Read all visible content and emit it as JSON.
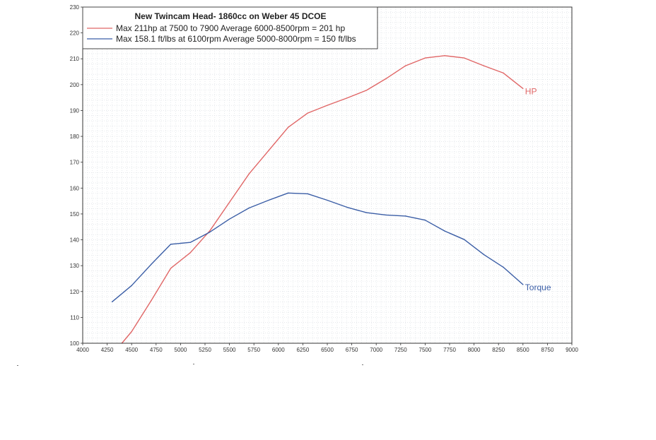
{
  "chart_data": {
    "type": "line",
    "title": "New Twincam Head- 1860cc on Weber 45 DCOE",
    "xlabel": "",
    "ylabel": "",
    "xlim": [
      4000,
      9000
    ],
    "ylim": [
      100,
      230
    ],
    "grid": true,
    "legend_position": "top-left",
    "x_ticks": [
      "4000",
      "4250",
      "4500",
      "4750",
      "5000",
      "5250",
      "5500",
      "5750",
      "6000",
      "6250",
      "6500",
      "6750",
      "7000",
      "7250",
      "7500",
      "7750",
      "8000",
      "8250",
      "8500",
      "8750",
      "9000"
    ],
    "y_ticks": [
      "100",
      "110",
      "120",
      "130",
      "140",
      "150",
      "160",
      "170",
      "180",
      "190",
      "200",
      "210",
      "220",
      "230"
    ],
    "series": [
      {
        "name": "HP",
        "legend": "Max  211hp at 7500 to 7900   Average 6000-8500rpm = 201 hp",
        "color": "#e06666",
        "x": [
          4400,
          4500,
          4700,
          4900,
          5100,
          5300,
          5500,
          5700,
          5900,
          6100,
          6300,
          6500,
          6700,
          6900,
          7100,
          7300,
          7500,
          7700,
          7900,
          8100,
          8300,
          8500
        ],
        "y": [
          100,
          104.5,
          116.5,
          129,
          135,
          143.5,
          154.5,
          165.5,
          174.5,
          183.5,
          189,
          192,
          194.8,
          197.8,
          202.3,
          207.3,
          210.3,
          211.2,
          210.3,
          207.3,
          204.5,
          198.5
        ]
      },
      {
        "name": "Torque",
        "legend": "Max 158.1 ft/lbs at 6100rpm   Average 5000-8000rpm = 150 ft/lbs",
        "color": "#3b5ea6",
        "x": [
          4300,
          4500,
          4700,
          4900,
          5100,
          5300,
          5500,
          5700,
          5900,
          6100,
          6300,
          6500,
          6700,
          6900,
          7100,
          7300,
          7500,
          7700,
          7900,
          8100,
          8300,
          8500
        ],
        "y": [
          116,
          122.3,
          130.5,
          138.3,
          139,
          143,
          148,
          152.3,
          155.3,
          158.1,
          157.8,
          155.3,
          152.6,
          150.5,
          149.6,
          149.2,
          147.6,
          143.4,
          140.1,
          134.3,
          129.4,
          122.7
        ]
      }
    ]
  }
}
